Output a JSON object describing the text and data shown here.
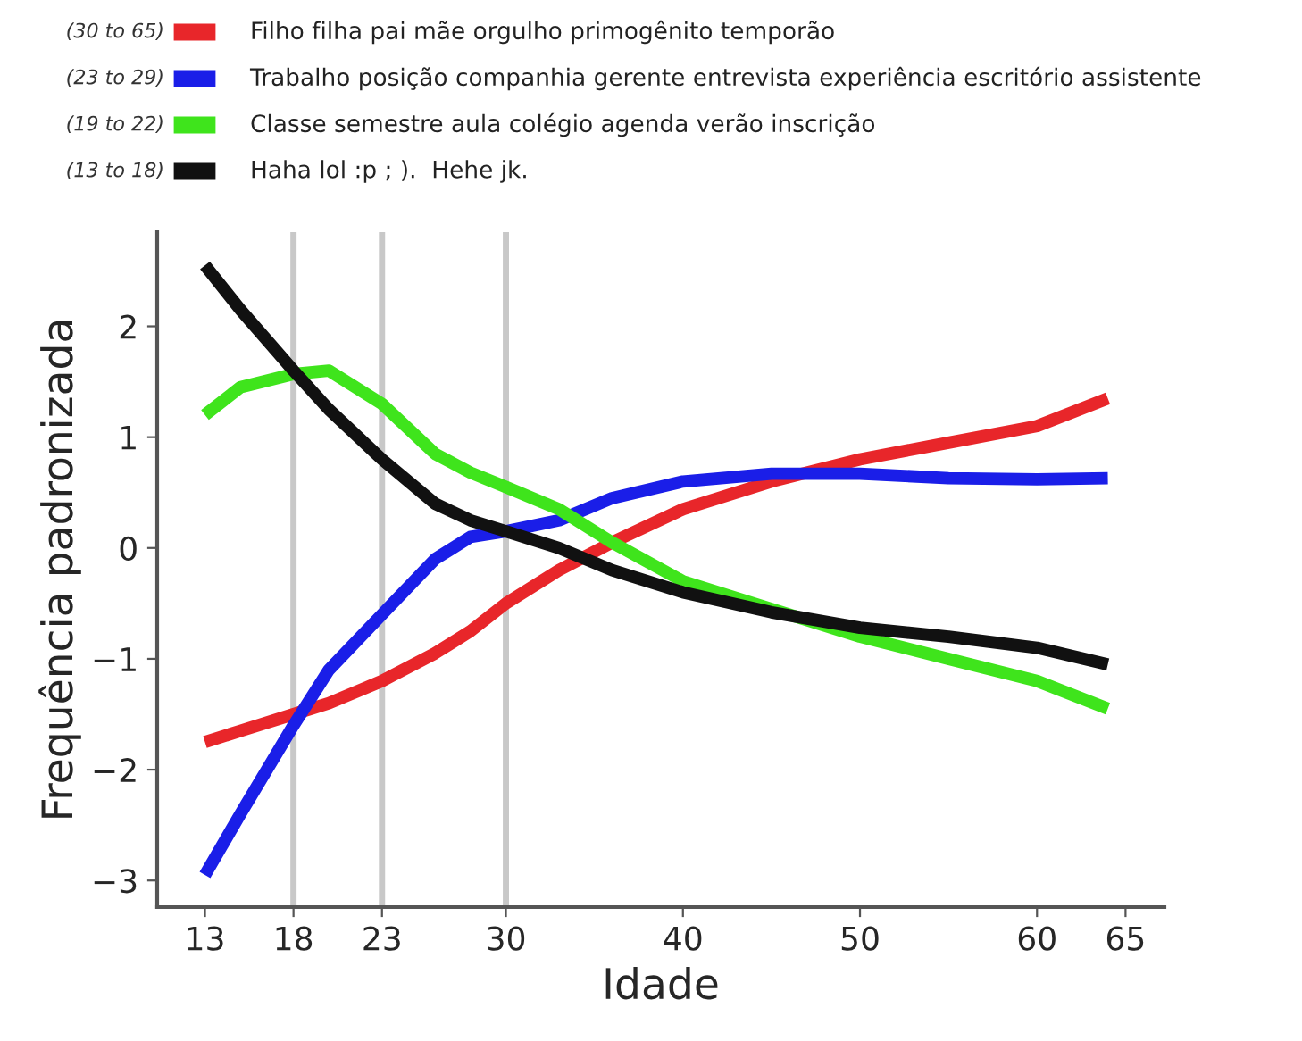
{
  "chart_data": {
    "type": "line",
    "xlabel": "Idade",
    "ylabel": "Frequência padronizada",
    "x": [
      13,
      15,
      18,
      20,
      23,
      26,
      28,
      30,
      33,
      36,
      40,
      45,
      50,
      55,
      60,
      64
    ],
    "series": [
      {
        "name": "Filho filha pai mãe orgulho primogênito temporão",
        "color": "#e8262a",
        "values": [
          -1.75,
          -1.65,
          -1.5,
          -1.4,
          -1.2,
          -0.95,
          -0.75,
          -0.5,
          -0.2,
          0.05,
          0.35,
          0.6,
          0.8,
          0.95,
          1.1,
          1.35
        ]
      },
      {
        "name": "Trabalho posição companhia gerente entrevista experiência escritório assistente",
        "color": "#1a1ee8",
        "values": [
          -2.95,
          -2.4,
          -1.6,
          -1.1,
          -0.6,
          -0.1,
          0.1,
          0.15,
          0.25,
          0.45,
          0.6,
          0.67,
          0.67,
          0.63,
          0.62,
          0.63
        ]
      },
      {
        "name": "Classe semestre aula colégio agenda verão inscrição",
        "color": "#3fe41c",
        "values": [
          1.2,
          1.45,
          1.57,
          1.6,
          1.3,
          0.85,
          0.68,
          0.55,
          0.35,
          0.05,
          -0.3,
          -0.55,
          -0.8,
          -1.0,
          -1.2,
          -1.45
        ]
      },
      {
        "name": "Haha lol :p ; ).  Hehe jk.",
        "color": "#111111",
        "values": [
          2.55,
          2.15,
          1.6,
          1.25,
          0.8,
          0.4,
          0.25,
          0.15,
          0.0,
          -0.2,
          -0.4,
          -0.58,
          -0.72,
          -0.8,
          -0.9,
          -1.05
        ]
      }
    ],
    "annotations": [
      "(30 to 65)",
      "(23 to 29)",
      "(19 to 22)",
      "(13 to 18)"
    ],
    "ref_lines": [
      {
        "axis": "x",
        "value": 18,
        "color": "#c8c8c8"
      },
      {
        "axis": "x",
        "value": 23,
        "color": "#c8c8c8"
      },
      {
        "axis": "x",
        "value": 30,
        "color": "#c8c8c8"
      }
    ],
    "xlim": [
      10.3,
      67.2
    ],
    "ylim": [
      -3.24,
      2.85
    ],
    "xticks": [
      13,
      18,
      23,
      30,
      40,
      50,
      60,
      65
    ],
    "yticks": [
      {
        "value": -3,
        "label": "−3"
      },
      {
        "value": -2,
        "label": "−2"
      },
      {
        "value": -1,
        "label": "−1"
      },
      0,
      1,
      2
    ],
    "grid": false,
    "legend": "top left",
    "marker": "none",
    "line_style": "solid"
  }
}
